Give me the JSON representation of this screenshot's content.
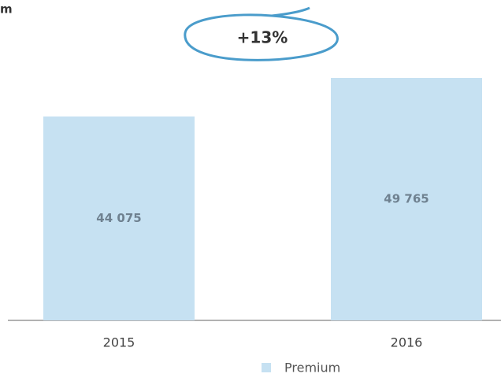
{
  "chart_data": {
    "type": "bar",
    "title": "m",
    "annotation": "+13%",
    "categories": [
      "2015",
      "2016"
    ],
    "values": [
      44075,
      49765
    ],
    "value_labels": [
      "44 075",
      "49 765"
    ],
    "series_name": "Premium",
    "color": "#c6e1f2",
    "ylim": [
      14000,
      54000
    ]
  }
}
